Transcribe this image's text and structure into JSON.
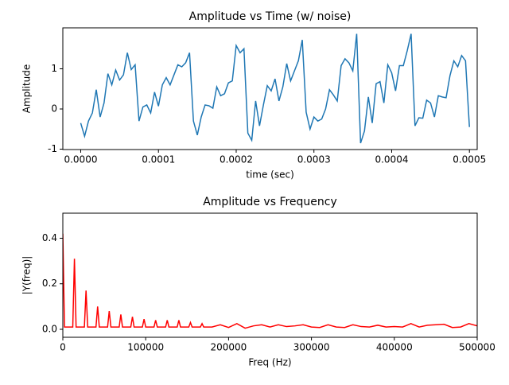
{
  "chart_data": [
    {
      "type": "line",
      "title": "Amplitude vs Time (w/ noise)",
      "x_label": "time (sec)",
      "y_label": "Amplitude",
      "color": "#1f77b4",
      "x": [
        0,
        5e-06,
        1e-05,
        1.5e-05,
        2e-05,
        2.5e-05,
        3e-05,
        3.5e-05,
        4e-05,
        4.5e-05,
        5e-05,
        5.5e-05,
        6e-05,
        6.5e-05,
        7e-05,
        7.5e-05,
        8e-05,
        8.5e-05,
        9e-05,
        9.5e-05,
        0.0001,
        0.000105,
        0.00011,
        0.000115,
        0.00012,
        0.000125,
        0.00013,
        0.000135,
        0.00014,
        0.000145,
        0.00015,
        0.000155,
        0.00016,
        0.000165,
        0.00017,
        0.000175,
        0.00018,
        0.000185,
        0.00019,
        0.000195,
        0.0002,
        0.000205,
        0.00021,
        0.000215,
        0.00022,
        0.000225,
        0.00023,
        0.000235,
        0.00024,
        0.000245,
        0.00025,
        0.000255,
        0.00026,
        0.000265,
        0.00027,
        0.000275,
        0.00028,
        0.000285,
        0.00029,
        0.000295,
        0.0003,
        0.000305,
        0.00031,
        0.000315,
        0.00032,
        0.000325,
        0.00033,
        0.000335,
        0.00034,
        0.000345,
        0.00035,
        0.000355,
        0.00036,
        0.000365,
        0.00037,
        0.000375,
        0.00038,
        0.000385,
        0.00039,
        0.000395,
        0.0004,
        0.000405,
        0.00041,
        0.000415,
        0.00042,
        0.000425,
        0.00043,
        0.000435,
        0.00044,
        0.000445,
        0.00045,
        0.000455,
        0.00046,
        0.000465,
        0.00047,
        0.000475,
        0.00048,
        0.000485,
        0.00049,
        0.000495,
        0.0005
      ],
      "values": [
        -0.35,
        -0.68,
        -0.3,
        -0.1,
        0.48,
        -0.2,
        0.15,
        0.88,
        0.6,
        0.97,
        0.72,
        0.85,
        1.4,
        0.98,
        1.1,
        -0.3,
        0.05,
        0.1,
        -0.1,
        0.42,
        0.07,
        0.6,
        0.78,
        0.6,
        0.85,
        1.1,
        1.05,
        1.15,
        1.4,
        -0.3,
        -0.65,
        -0.2,
        0.1,
        0.08,
        0.02,
        0.55,
        0.33,
        0.38,
        0.65,
        0.7,
        1.58,
        1.4,
        1.5,
        -0.6,
        -0.78,
        0.2,
        -0.42,
        0.1,
        0.58,
        0.45,
        0.75,
        0.2,
        0.55,
        1.13,
        0.7,
        0.95,
        1.2,
        1.72,
        -0.08,
        -0.5,
        -0.2,
        -0.3,
        -0.25,
        0.0,
        0.48,
        0.35,
        0.2,
        1.08,
        1.25,
        1.15,
        0.95,
        1.87,
        -0.85,
        -0.55,
        0.3,
        -0.35,
        0.63,
        0.68,
        0.15,
        1.1,
        0.9,
        0.45,
        1.08,
        1.08,
        1.45,
        1.87,
        -0.42,
        -0.22,
        -0.23,
        0.22,
        0.15,
        -0.2,
        0.33,
        0.3,
        0.28,
        0.83,
        1.2,
        1.05,
        1.33,
        1.2,
        -0.45
      ],
      "xlim": [
        -2.3e-05,
        0.00051
      ],
      "ylim": [
        -1.01,
        2.02
      ],
      "xticks": [
        {
          "value": 0,
          "label": "0.0000"
        },
        {
          "value": 0.0001,
          "label": "0.0001"
        },
        {
          "value": 0.0002,
          "label": "0.0002"
        },
        {
          "value": 0.0003,
          "label": "0.0003"
        },
        {
          "value": 0.0004,
          "label": "0.0004"
        },
        {
          "value": 0.0005,
          "label": "0.0005"
        }
      ],
      "yticks": [
        -1,
        0,
        1
      ]
    },
    {
      "type": "line",
      "title": "Amplitude vs Frequency",
      "x_label": "Freq (Hz)",
      "y_label": "|Y(freq)|",
      "color": "#ff0000",
      "x": [
        0,
        2000,
        12000,
        14000,
        16000,
        26000,
        28000,
        30000,
        40000,
        42000,
        44000,
        54000,
        56000,
        58000,
        68000,
        70000,
        72000,
        82000,
        84000,
        86000,
        96000,
        98000,
        100000,
        110000,
        112000,
        114000,
        124000,
        126000,
        128000,
        138000,
        140000,
        142000,
        152000,
        154000,
        156000,
        166000,
        168000,
        170000,
        180000,
        190000,
        200000,
        210000,
        220000,
        230000,
        240000,
        250000,
        260000,
        270000,
        280000,
        290000,
        300000,
        310000,
        320000,
        330000,
        340000,
        350000,
        360000,
        370000,
        380000,
        390000,
        400000,
        410000,
        420000,
        430000,
        440000,
        450000,
        460000,
        470000,
        480000,
        490000,
        500000
      ],
      "values": [
        0.42,
        0.01,
        0.01,
        0.31,
        0.01,
        0.01,
        0.17,
        0.01,
        0.01,
        0.1,
        0.01,
        0.01,
        0.08,
        0.01,
        0.01,
        0.065,
        0.01,
        0.01,
        0.055,
        0.01,
        0.01,
        0.045,
        0.01,
        0.01,
        0.04,
        0.01,
        0.01,
        0.04,
        0.01,
        0.01,
        0.04,
        0.01,
        0.01,
        0.03,
        0.01,
        0.01,
        0.025,
        0.01,
        0.01,
        0.02,
        0.008,
        0.025,
        0.005,
        0.015,
        0.02,
        0.01,
        0.02,
        0.012,
        0.015,
        0.02,
        0.01,
        0.008,
        0.02,
        0.01,
        0.008,
        0.02,
        0.012,
        0.01,
        0.018,
        0.01,
        0.012,
        0.01,
        0.025,
        0.01,
        0.018,
        0.02,
        0.022,
        0.008,
        0.01,
        0.025,
        0.015
      ],
      "xlim": [
        0,
        500000
      ],
      "ylim": [
        -0.035,
        0.51
      ],
      "xticks": [
        0,
        100000,
        200000,
        300000,
        400000,
        500000
      ],
      "yticks": [
        {
          "value": 0,
          "label": "0.0"
        },
        0.2,
        0.4
      ]
    }
  ]
}
